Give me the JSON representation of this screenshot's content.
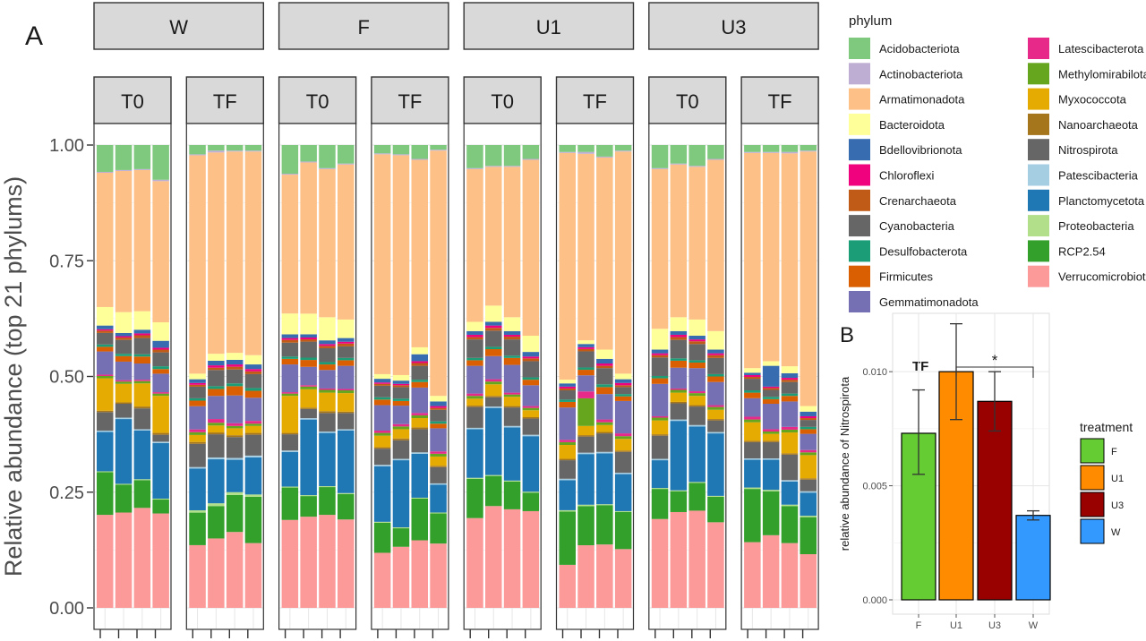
{
  "figure": {
    "panel_a_label": "A",
    "panel_b_label": "B"
  },
  "colors": {
    "Acidobacteriota": "#7fc97f",
    "Actinobacteriota": "#beaed4",
    "Armatimonadota": "#fdc086",
    "Bacteroidota": "#ffff99",
    "Bdellovibrionota": "#386cb0",
    "Chloroflexi": "#f0027f",
    "Crenarchaeota": "#bf5b17",
    "Cyanobacteria": "#666666",
    "Desulfobacterota": "#1b9e77",
    "Firmicutes": "#d95f02",
    "Gemmatimonadota": "#7570b3",
    "Latescibacterota": "#e7298a",
    "Methylomirabilota": "#66a61e",
    "Myxococcota": "#e6ab02",
    "Nanoarchaeota": "#a6761d",
    "Nitrospirota": "#666666",
    "Patescibacteria": "#a6cee3",
    "Planctomycetota": "#1f78b4",
    "Proteobacteria": "#b2df8a",
    "RCP2.54": "#33a02c",
    "Verrucomicrobiota": "#fb9a99",
    "F": "#66cc33",
    "U1": "#ff8c00",
    "U3": "#990000",
    "W": "#3399ff"
  },
  "chart_data": [
    {
      "type": "bar",
      "subtype": "stacked-percent",
      "title": "",
      "xlabel": "",
      "ylabel": "Relative abundance (top 21 phylums)",
      "ylim": [
        0,
        1
      ],
      "yticks": [
        "0.00",
        "0.25",
        "0.50",
        "0.75",
        "1.00"
      ],
      "treatments": [
        "W",
        "F",
        "U1",
        "U3"
      ],
      "times": [
        "T0",
        "TF"
      ],
      "legend_title": "phylum",
      "legend": [
        "Acidobacteriota",
        "Actinobacteriota",
        "Armatimonadota",
        "Bacteroidota",
        "Bdellovibrionota",
        "Chloroflexi",
        "Crenarchaeota",
        "Cyanobacteria",
        "Desulfobacterota",
        "Firmicutes",
        "Gemmatimonadota",
        "Latescibacterota",
        "Methylomirabilota",
        "Myxococcota",
        "Nanoarchaeota",
        "Nitrospirota",
        "Patescibacteria",
        "Planctomycetota",
        "Proteobacteria",
        "RCP2.54",
        "Verrucomicrobiota"
      ],
      "stack_order_bottom_to_top": [
        "Verrucomicrobiota",
        "RCP2.54",
        "Proteobacteria",
        "Planctomycetota",
        "Patescibacteria",
        "Nitrospirota",
        "Nanoarchaeota",
        "Myxococcota",
        "Methylomirabilota",
        "Latescibacterota",
        "Gemmatimonadota",
        "Firmicutes",
        "Desulfobacterota",
        "Cyanobacteria",
        "Crenarchaeota",
        "Chloroflexi",
        "Bdellovibrionota",
        "Bacteroidota",
        "Armatimonadota",
        "Actinobacteriota",
        "Acidobacteriota"
      ],
      "samples": [
        {
          "treatment": "W",
          "time": "T0",
          "values": [
            0.058,
            0.002,
            0.29,
            0.04,
            0.008,
            0.003,
            0.005,
            0.025,
            0.005,
            0.01,
            0.05,
            0.003,
            0.005,
            0.07,
            0.003,
            0.04,
            0.003,
            0.085,
            0.002,
            0.092,
            0.201
          ]
        },
        {
          "treatment": "W",
          "time": "T0",
          "values": [
            0.054,
            0.002,
            0.305,
            0.045,
            0.007,
            0.003,
            0.005,
            0.03,
            0.005,
            0.012,
            0.04,
            0.003,
            0.005,
            0.04,
            0.003,
            0.03,
            0.003,
            0.14,
            0.002,
            0.06,
            0.206
          ]
        },
        {
          "treatment": "W",
          "time": "T0",
          "values": [
            0.052,
            0.002,
            0.305,
            0.04,
            0.008,
            0.004,
            0.006,
            0.035,
            0.005,
            0.015,
            0.035,
            0.003,
            0.005,
            0.05,
            0.004,
            0.045,
            0.003,
            0.105,
            0.002,
            0.06,
            0.216
          ]
        },
        {
          "treatment": "W",
          "time": "T0",
          "values": [
            0.075,
            0.003,
            0.305,
            0.04,
            0.015,
            0.004,
            0.006,
            0.03,
            0.006,
            0.01,
            0.04,
            0.003,
            0.005,
            0.08,
            0.004,
            0.015,
            0.003,
            0.12,
            0.002,
            0.03,
            0.204
          ]
        },
        {
          "treatment": "W",
          "time": "TF",
          "values": [
            0.02,
            0.002,
            0.47,
            0.012,
            0.008,
            0.004,
            0.004,
            0.025,
            0.005,
            0.012,
            0.05,
            0.006,
            0.006,
            0.015,
            0.004,
            0.05,
            0.003,
            0.09,
            0.005,
            0.07,
            0.135
          ]
        },
        {
          "treatment": "W",
          "time": "TF",
          "values": [
            0.012,
            0.004,
            0.435,
            0.015,
            0.01,
            0.005,
            0.005,
            0.035,
            0.006,
            0.015,
            0.05,
            0.008,
            0.006,
            0.015,
            0.004,
            0.05,
            0.004,
            0.095,
            0.006,
            0.07,
            0.15
          ]
        },
        {
          "treatment": "W",
          "time": "TF",
          "values": [
            0.012,
            0.002,
            0.435,
            0.015,
            0.01,
            0.005,
            0.006,
            0.03,
            0.006,
            0.02,
            0.06,
            0.006,
            0.005,
            0.015,
            0.004,
            0.045,
            0.004,
            0.07,
            0.006,
            0.08,
            0.164
          ]
        },
        {
          "treatment": "W",
          "time": "TF",
          "values": [
            0.012,
            0.002,
            0.44,
            0.02,
            0.01,
            0.005,
            0.006,
            0.03,
            0.006,
            0.015,
            0.05,
            0.006,
            0.005,
            0.015,
            0.004,
            0.045,
            0.004,
            0.08,
            0.005,
            0.1,
            0.14
          ]
        },
        {
          "treatment": "F",
          "time": "T0",
          "values": [
            0.062,
            0.002,
            0.3,
            0.045,
            0.008,
            0.004,
            0.006,
            0.03,
            0.005,
            0.012,
            0.06,
            0.003,
            0.005,
            0.08,
            0.003,
            0.035,
            0.003,
            0.075,
            0.002,
            0.07,
            0.19
          ]
        },
        {
          "treatment": "F",
          "time": "T0",
          "values": [
            0.036,
            0.002,
            0.33,
            0.045,
            0.007,
            0.004,
            0.005,
            0.035,
            0.005,
            0.015,
            0.04,
            0.003,
            0.006,
            0.04,
            0.003,
            0.02,
            0.003,
            0.165,
            0.002,
            0.045,
            0.199
          ]
        },
        {
          "treatment": "F",
          "time": "T0",
          "values": [
            0.05,
            0.002,
            0.32,
            0.05,
            0.008,
            0.004,
            0.005,
            0.03,
            0.005,
            0.012,
            0.04,
            0.003,
            0.006,
            0.04,
            0.004,
            0.04,
            0.003,
            0.115,
            0.002,
            0.06,
            0.201
          ]
        },
        {
          "treatment": "F",
          "time": "T0",
          "values": [
            0.04,
            0.002,
            0.335,
            0.04,
            0.008,
            0.004,
            0.006,
            0.025,
            0.005,
            0.012,
            0.05,
            0.003,
            0.006,
            0.04,
            0.003,
            0.035,
            0.003,
            0.135,
            0.002,
            0.055,
            0.191
          ]
        },
        {
          "treatment": "F",
          "time": "TF",
          "values": [
            0.018,
            0.002,
            0.475,
            0.01,
            0.008,
            0.003,
            0.004,
            0.025,
            0.005,
            0.012,
            0.055,
            0.005,
            0.006,
            0.025,
            0.003,
            0.035,
            0.003,
            0.12,
            0.002,
            0.065,
            0.119
          ]
        },
        {
          "treatment": "F",
          "time": "TF",
          "values": [
            0.02,
            0.002,
            0.475,
            0.012,
            0.007,
            0.003,
            0.004,
            0.025,
            0.005,
            0.01,
            0.04,
            0.005,
            0.006,
            0.02,
            0.004,
            0.04,
            0.003,
            0.145,
            0.002,
            0.04,
            0.132
          ]
        },
        {
          "treatment": "F",
          "time": "TF",
          "values": [
            0.03,
            0.002,
            0.405,
            0.015,
            0.015,
            0.004,
            0.006,
            0.03,
            0.005,
            0.012,
            0.055,
            0.005,
            0.006,
            0.02,
            0.004,
            0.05,
            0.003,
            0.095,
            0.002,
            0.09,
            0.146
          ]
        },
        {
          "treatment": "F",
          "time": "TF",
          "values": [
            0.01,
            0.002,
            0.53,
            0.012,
            0.01,
            0.004,
            0.004,
            0.025,
            0.005,
            0.01,
            0.05,
            0.005,
            0.006,
            0.02,
            0.003,
            0.035,
            0.003,
            0.06,
            0.002,
            0.065,
            0.139
          ]
        },
        {
          "treatment": "U1",
          "time": "T0",
          "values": [
            0.05,
            0.002,
            0.33,
            0.02,
            0.008,
            0.005,
            0.005,
            0.04,
            0.005,
            0.012,
            0.06,
            0.005,
            0.006,
            0.015,
            0.003,
            0.045,
            0.003,
            0.105,
            0.002,
            0.085,
            0.194
          ]
        },
        {
          "treatment": "U1",
          "time": "T0",
          "values": [
            0.045,
            0.002,
            0.3,
            0.035,
            0.008,
            0.005,
            0.006,
            0.035,
            0.005,
            0.015,
            0.05,
            0.005,
            0.006,
            0.025,
            0.003,
            0.02,
            0.003,
            0.145,
            0.002,
            0.065,
            0.22
          ]
        },
        {
          "treatment": "U1",
          "time": "T0",
          "values": [
            0.045,
            0.002,
            0.325,
            0.03,
            0.008,
            0.004,
            0.006,
            0.035,
            0.005,
            0.015,
            0.06,
            0.004,
            0.005,
            0.02,
            0.003,
            0.04,
            0.003,
            0.115,
            0.002,
            0.06,
            0.213
          ]
        },
        {
          "treatment": "U1",
          "time": "T0",
          "values": [
            0.03,
            0.002,
            0.38,
            0.035,
            0.01,
            0.004,
            0.006,
            0.035,
            0.005,
            0.012,
            0.045,
            0.004,
            0.005,
            0.015,
            0.003,
            0.035,
            0.003,
            0.12,
            0.002,
            0.04,
            0.209
          ]
        },
        {
          "treatment": "U1",
          "time": "TF",
          "values": [
            0.015,
            0.002,
            0.49,
            0.008,
            0.007,
            0.004,
            0.004,
            0.02,
            0.005,
            0.012,
            0.07,
            0.005,
            0.006,
            0.03,
            0.003,
            0.04,
            0.003,
            0.065,
            0.003,
            0.115,
            0.093
          ]
        },
        {
          "treatment": "U1",
          "time": "TF",
          "values": [
            0.015,
            0.004,
            0.405,
            0.008,
            0.007,
            0.004,
            0.005,
            0.035,
            0.005,
            0.012,
            0.035,
            0.015,
            0.06,
            0.02,
            0.003,
            0.035,
            0.003,
            0.11,
            0.003,
            0.085,
            0.136
          ]
        },
        {
          "treatment": "U1",
          "time": "TF",
          "values": [
            0.025,
            0.002,
            0.415,
            0.02,
            0.01,
            0.005,
            0.005,
            0.035,
            0.006,
            0.015,
            0.055,
            0.006,
            0.006,
            0.015,
            0.003,
            0.04,
            0.003,
            0.11,
            0.002,
            0.085,
            0.137
          ]
        },
        {
          "treatment": "U1",
          "time": "TF",
          "values": [
            0.012,
            0.002,
            0.48,
            0.012,
            0.008,
            0.005,
            0.004,
            0.015,
            0.005,
            0.01,
            0.07,
            0.006,
            0.006,
            0.025,
            0.003,
            0.045,
            0.003,
            0.08,
            0.002,
            0.08,
            0.127
          ]
        },
        {
          "treatment": "U3",
          "time": "T0",
          "values": [
            0.05,
            0.002,
            0.345,
            0.045,
            0.008,
            0.004,
            0.005,
            0.04,
            0.005,
            0.012,
            0.07,
            0.003,
            0.006,
            0.03,
            0.003,
            0.05,
            0.003,
            0.06,
            0.002,
            0.065,
            0.192
          ]
        },
        {
          "treatment": "U3",
          "time": "T0",
          "values": [
            0.04,
            0.002,
            0.33,
            0.03,
            0.008,
            0.005,
            0.006,
            0.04,
            0.005,
            0.015,
            0.045,
            0.003,
            0.006,
            0.02,
            0.003,
            0.035,
            0.003,
            0.15,
            0.002,
            0.045,
            0.207
          ]
        },
        {
          "treatment": "U3",
          "time": "T0",
          "values": [
            0.045,
            0.002,
            0.33,
            0.035,
            0.008,
            0.004,
            0.006,
            0.035,
            0.005,
            0.012,
            0.05,
            0.004,
            0.006,
            0.02,
            0.003,
            0.04,
            0.003,
            0.12,
            0.002,
            0.06,
            0.21
          ]
        },
        {
          "treatment": "U3",
          "time": "T0",
          "values": [
            0.03,
            0.002,
            0.37,
            0.04,
            0.008,
            0.004,
            0.006,
            0.035,
            0.005,
            0.012,
            0.05,
            0.004,
            0.006,
            0.02,
            0.003,
            0.025,
            0.003,
            0.135,
            0.002,
            0.055,
            0.185
          ]
        },
        {
          "treatment": "U3",
          "time": "TF",
          "values": [
            0.015,
            0.002,
            0.465,
            0.01,
            0.005,
            0.004,
            0.004,
            0.025,
            0.005,
            0.012,
            0.04,
            0.006,
            0.006,
            0.04,
            0.003,
            0.035,
            0.003,
            0.06,
            0.003,
            0.115,
            0.142
          ]
        },
        {
          "treatment": "U3",
          "time": "TF",
          "values": [
            0.015,
            0.002,
            0.45,
            0.01,
            0.045,
            0.003,
            0.004,
            0.015,
            0.005,
            0.01,
            0.055,
            0.005,
            0.005,
            0.015,
            0.003,
            0.035,
            0.003,
            0.065,
            0.003,
            0.095,
            0.157
          ]
        },
        {
          "treatment": "U3",
          "time": "TF",
          "values": [
            0.015,
            0.003,
            0.46,
            0.015,
            0.01,
            0.004,
            0.005,
            0.025,
            0.005,
            0.012,
            0.055,
            0.006,
            0.006,
            0.045,
            0.003,
            0.055,
            0.003,
            0.05,
            0.003,
            0.08,
            0.14
          ]
        },
        {
          "treatment": "U3",
          "time": "TF",
          "values": [
            0.012,
            0.002,
            0.55,
            0.012,
            0.01,
            0.004,
            0.004,
            0.015,
            0.005,
            0.01,
            0.035,
            0.005,
            0.006,
            0.05,
            0.003,
            0.025,
            0.003,
            0.05,
            0.003,
            0.08,
            0.116
          ]
        }
      ]
    },
    {
      "type": "bar",
      "title": "TF",
      "xlabel": "",
      "ylabel": "relative abundance of Nitrospirota",
      "ylim": [
        0,
        0.0124
      ],
      "yticks": [
        "0.000",
        "0.005",
        "0.010"
      ],
      "categories": [
        "F",
        "U1",
        "U3",
        "W"
      ],
      "values": [
        0.0073,
        0.01,
        0.0087,
        0.0037
      ],
      "errors": [
        [
          0.0055,
          0.0092
        ],
        [
          0.0079,
          0.0121
        ],
        [
          0.0074,
          0.01
        ],
        [
          0.0035,
          0.0039
        ]
      ],
      "legend_title": "treatment",
      "legend": [
        "F",
        "U1",
        "U3",
        "W"
      ],
      "significance": {
        "from": "U1",
        "to": "W",
        "label": "*"
      }
    }
  ]
}
